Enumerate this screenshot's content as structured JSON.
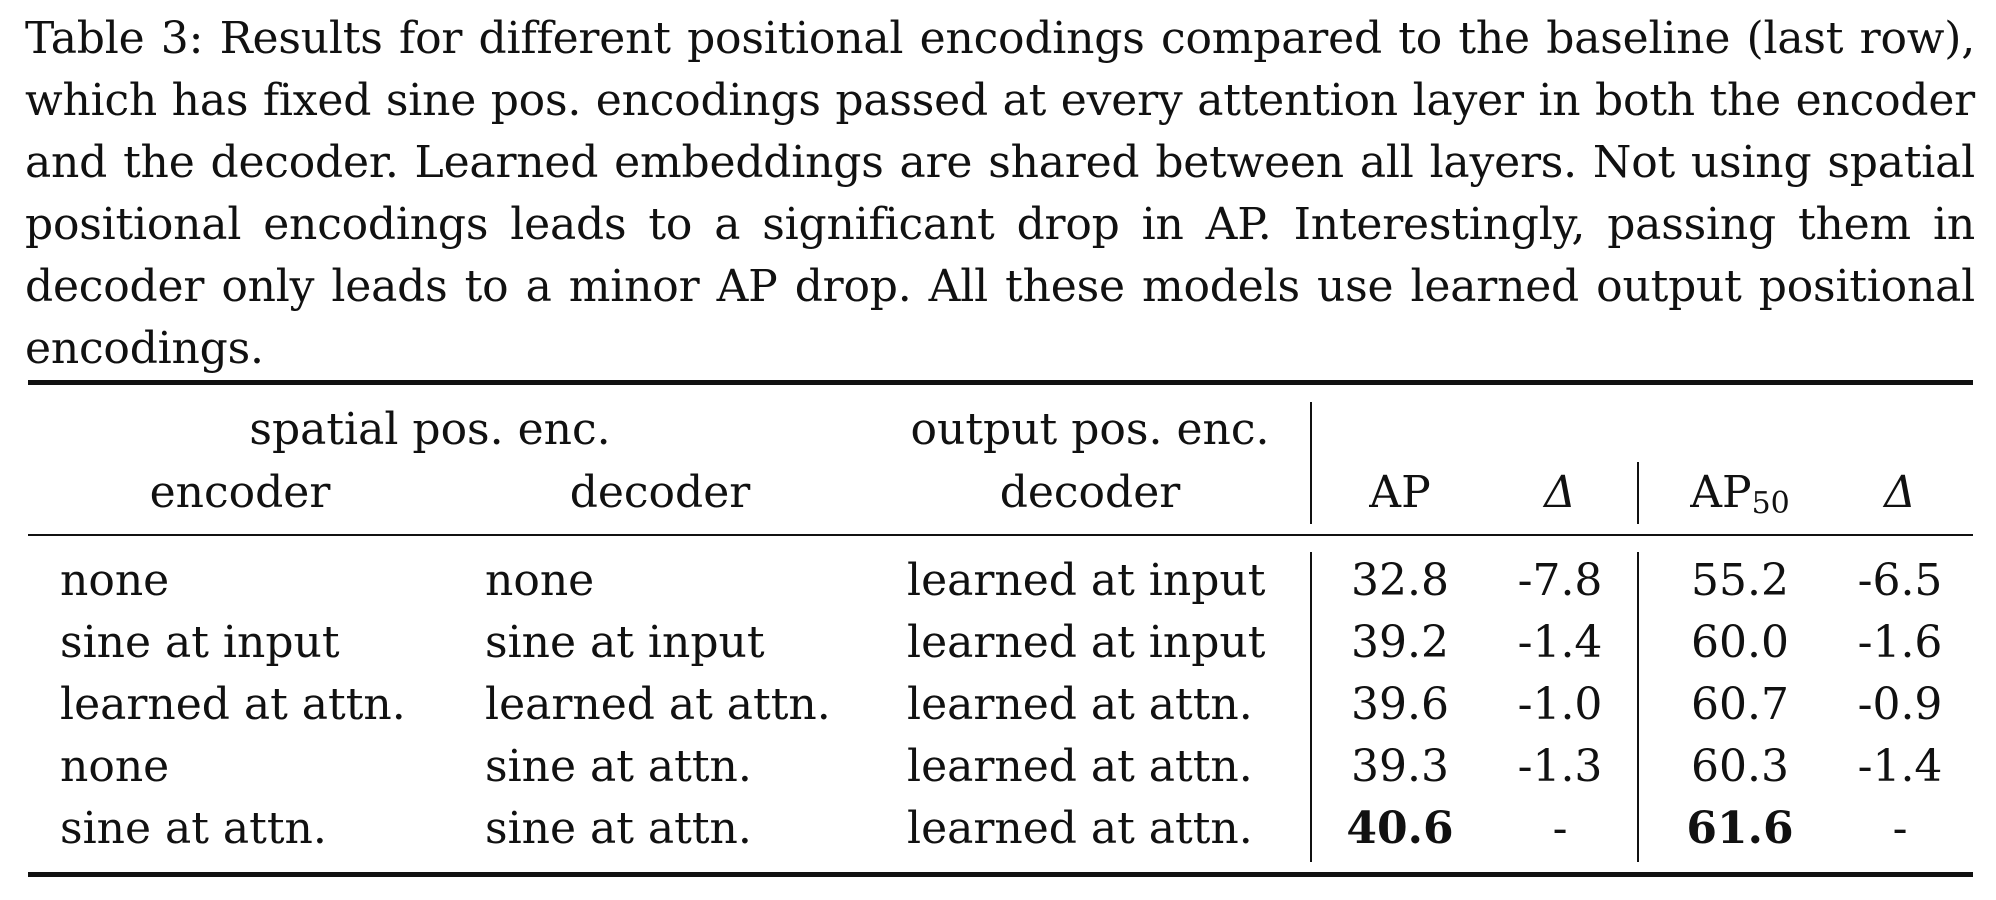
{
  "caption": "Table 3: Results for different positional encodings compared to the baseline (last row), which has fixed sine pos. encodings passed at every attention layer in both the encoder and the decoder. Learned embeddings are shared between all layers. Not using spatial positional encodings leads to a significant drop in AP. Interestingly, passing them in decoder only leads to a minor AP drop. All these models use learned output positional encodings.",
  "header": {
    "spatial_group": "spatial pos. enc.",
    "output_group": "output pos. enc.",
    "encoder": "encoder",
    "decoder": "decoder",
    "output_decoder": "decoder",
    "ap": "AP",
    "delta1": "Δ",
    "ap50_main": "AP",
    "ap50_sub": "50",
    "delta2": "Δ"
  },
  "rows": [
    {
      "encoder": "none",
      "decoder": "none",
      "output": "learned at input",
      "ap": "32.8",
      "d1": "-7.8",
      "ap50": "55.2",
      "d2": "-6.5"
    },
    {
      "encoder": "sine at input",
      "decoder": "sine at input",
      "output": "learned at input",
      "ap": "39.2",
      "d1": "-1.4",
      "ap50": "60.0",
      "d2": "-1.6"
    },
    {
      "encoder": "learned at attn.",
      "decoder": "learned at attn.",
      "output": "learned at attn.",
      "ap": "39.6",
      "d1": "-1.0",
      "ap50": "60.7",
      "d2": "-0.9"
    },
    {
      "encoder": "none",
      "decoder": "sine at attn.",
      "output": "learned at attn.",
      "ap": "39.3",
      "d1": "-1.3",
      "ap50": "60.3",
      "d2": "-1.4"
    },
    {
      "encoder": "sine at attn.",
      "decoder": "sine at attn.",
      "output": "learned at attn.",
      "ap": "40.6",
      "d1": "-",
      "ap50": "61.6",
      "d2": "-"
    }
  ]
}
